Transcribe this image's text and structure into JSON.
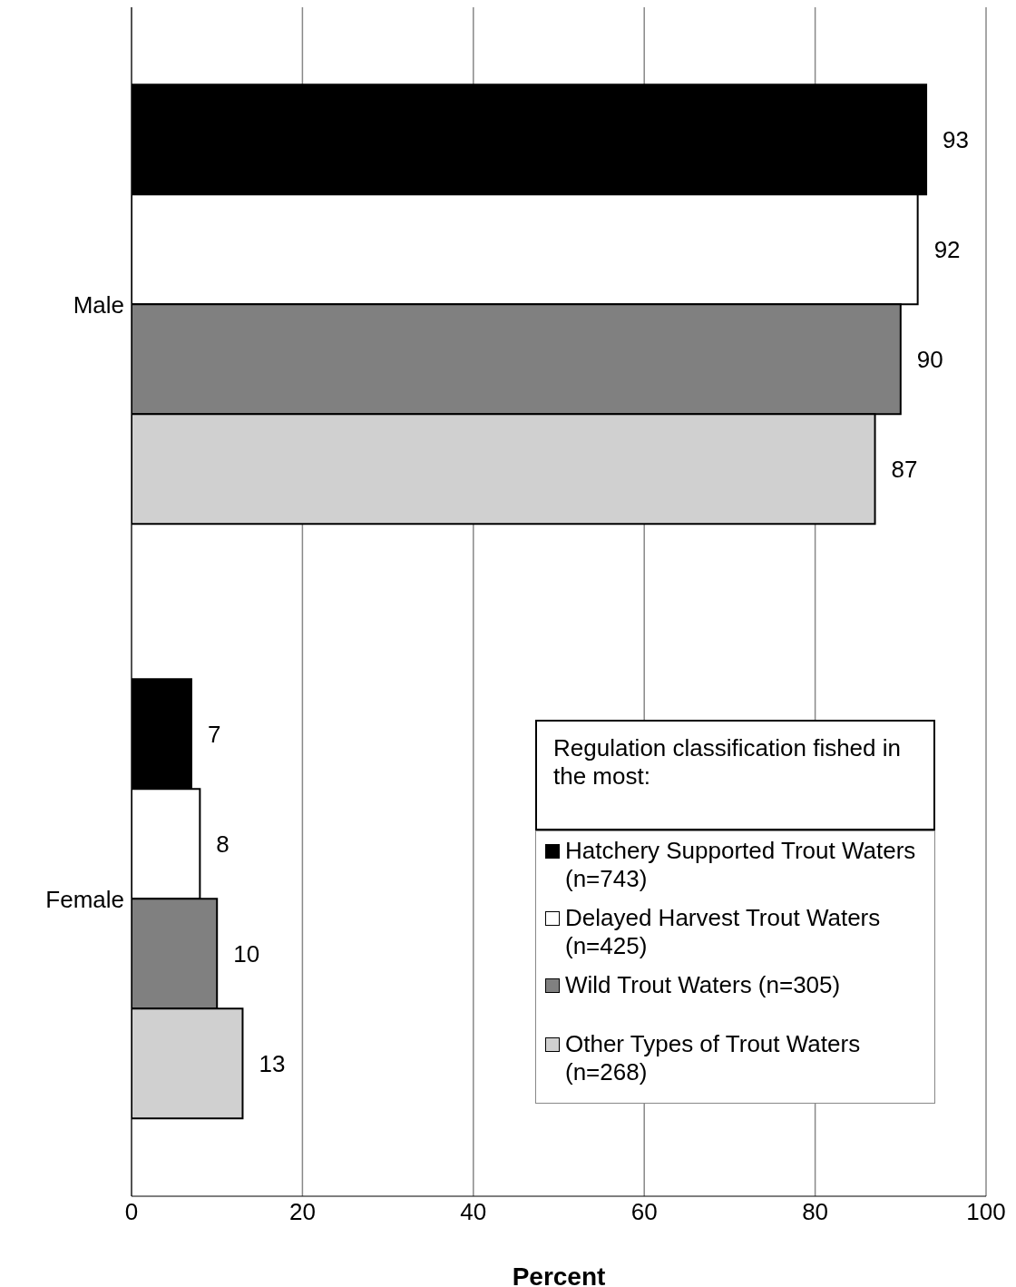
{
  "chart_data": {
    "type": "bar",
    "orientation": "horizontal",
    "categories": [
      "Male",
      "Female"
    ],
    "series": [
      {
        "name": "Hatchery Supported Trout Waters (n=743)",
        "color": "#000000",
        "values": [
          93,
          7
        ]
      },
      {
        "name": "Delayed Harvest Trout Waters (n=425)",
        "color": "#ffffff",
        "values": [
          92,
          8
        ]
      },
      {
        "name": "Wild Trout Waters (n=305)",
        "color": "#808080",
        "values": [
          90,
          10
        ]
      },
      {
        "name": "Other Types of Trout Waters (n=268)",
        "color": "#d0d0d0",
        "values": [
          87,
          13
        ]
      }
    ],
    "xlim": [
      0,
      100
    ],
    "xticks": [
      0,
      20,
      40,
      60,
      80,
      100
    ],
    "xlabel": "Percent",
    "legend_title": "Regulation classification fished in the most:",
    "legend": "bottom right",
    "grid": "x",
    "data_labels": true
  }
}
